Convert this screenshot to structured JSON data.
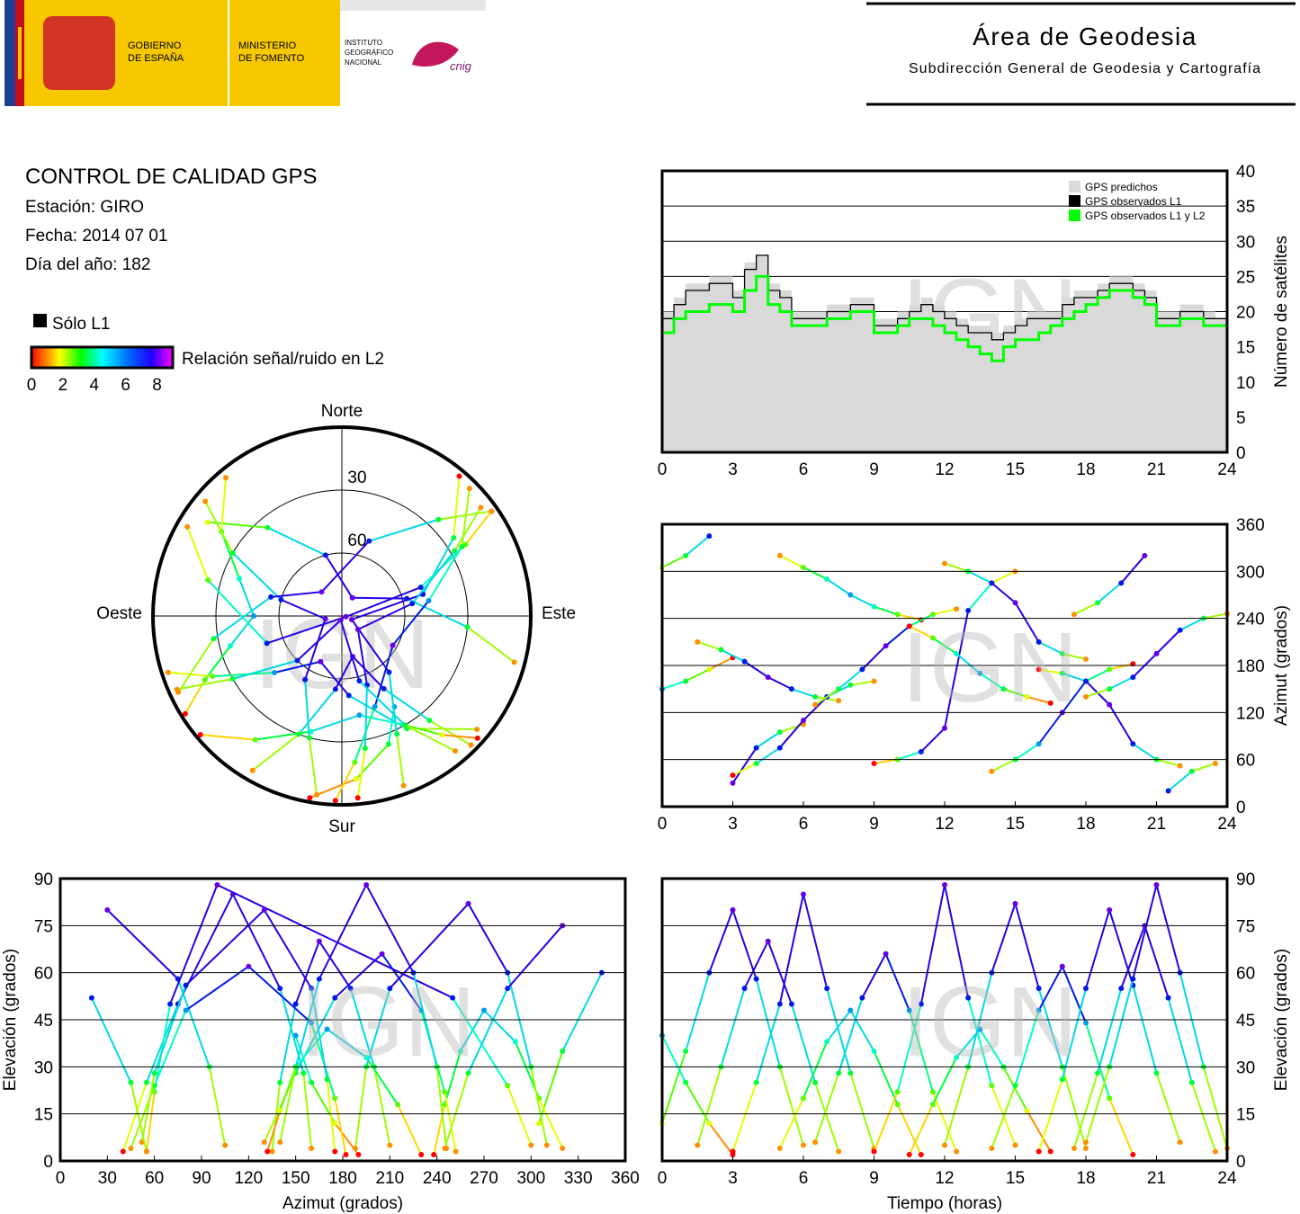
{
  "header": {
    "gobierno": [
      "GOBIERNO",
      "DE ESPAÑA"
    ],
    "ministerio": [
      "MINISTERIO",
      "DE FOMENTO"
    ],
    "ign": [
      "INSTITUTO",
      "GEOGRÁFICO",
      "NACIONAL"
    ],
    "cnig": "cnig",
    "title": "Área de Geodesia",
    "subtitle": "Subdirección General de Geodesia y Cartografía"
  },
  "report": {
    "title": "CONTROL DE CALIDAD GPS",
    "lines": [
      "Estación: GIRO",
      "Fecha: 2014 07 01",
      "Día del año: 182"
    ]
  },
  "legend": {
    "l1_only": "Sólo L1",
    "snr_label": "Relación señal/ruido en L2",
    "snr_lim": [
      0,
      9
    ],
    "snr_ticks": [
      0,
      2,
      4,
      6,
      8
    ]
  },
  "watermark": "IGN",
  "chart_data": [
    {
      "type": "step",
      "ylabel": "Número de satélites",
      "xlim": [
        0,
        24
      ],
      "xticks": [
        0,
        3,
        6,
        9,
        12,
        15,
        18,
        21,
        24
      ],
      "ylim": [
        0,
        40
      ],
      "yticks": [
        0,
        5,
        10,
        15,
        20,
        25,
        30,
        35,
        40
      ],
      "grid": true,
      "x": [
        0,
        0.5,
        1,
        1.5,
        2,
        2.5,
        3,
        3.5,
        4,
        4.5,
        5,
        5.5,
        6,
        6.5,
        7,
        7.5,
        8,
        8.5,
        9,
        9.5,
        10,
        10.5,
        11,
        11.5,
        12,
        12.5,
        13,
        13.5,
        14,
        14.5,
        15,
        15.5,
        16,
        16.5,
        17,
        17.5,
        18,
        18.5,
        19,
        19.5,
        20,
        20.5,
        21,
        21.5,
        22,
        22.5,
        23,
        23.5,
        24
      ],
      "series": [
        {
          "name": "GPS predichos",
          "color": "#d9d9d9",
          "values": [
            20,
            22,
            24,
            24,
            25,
            25,
            23,
            27,
            28,
            24,
            23,
            20,
            20,
            20,
            21,
            21,
            22,
            22,
            19,
            19,
            20,
            21,
            22,
            21,
            20,
            19,
            18,
            18,
            17,
            18,
            19,
            20,
            20,
            20,
            22,
            23,
            23,
            24,
            25,
            25,
            24,
            23,
            20,
            20,
            21,
            21,
            20,
            19,
            20
          ]
        },
        {
          "name": "GPS observados L1",
          "color": "#000000",
          "values": [
            19,
            21,
            23,
            23,
            24,
            24,
            22,
            26,
            28,
            23,
            22,
            19,
            19,
            19,
            20,
            20,
            21,
            21,
            18,
            18,
            19,
            20,
            21,
            20,
            19,
            18,
            17,
            17,
            16,
            17,
            18,
            19,
            19,
            19,
            21,
            22,
            22,
            23,
            24,
            24,
            23,
            22,
            19,
            19,
            20,
            20,
            19,
            19,
            20
          ]
        },
        {
          "name": "GPS observados L1 y L2",
          "color": "#00ff00",
          "values": [
            17,
            19,
            20,
            20,
            21,
            21,
            20,
            23,
            25,
            21,
            20,
            18,
            18,
            18,
            19,
            19,
            20,
            20,
            17,
            17,
            18,
            19,
            19,
            18,
            17,
            16,
            15,
            14,
            13,
            15,
            16,
            16,
            17,
            18,
            19,
            20,
            21,
            22,
            23,
            23,
            22,
            21,
            18,
            18,
            19,
            19,
            18,
            18,
            19
          ]
        }
      ]
    },
    {
      "type": "polar",
      "north": "Norte",
      "south": "Sur",
      "east": "Este",
      "west": "Oeste",
      "rlim": [
        90,
        0
      ],
      "rticks": [
        30,
        60
      ]
    },
    {
      "type": "azimuth-time",
      "ylabel": "Azimut (grados)",
      "xlim": [
        0,
        24
      ],
      "xticks": [
        0,
        3,
        6,
        9,
        12,
        15,
        18,
        21,
        24
      ],
      "ylim": [
        0,
        360
      ],
      "yticks": [
        0,
        60,
        120,
        180,
        240,
        300,
        360
      ],
      "grid": true
    },
    {
      "type": "elevation-azimuth",
      "xlabel": "Azimut (grados)",
      "ylabel": "Elevación (grados)",
      "xlim": [
        0,
        360
      ],
      "xticks": [
        0,
        30,
        60,
        90,
        120,
        150,
        180,
        210,
        240,
        270,
        300,
        330,
        360
      ],
      "ylim": [
        0,
        90
      ],
      "yticks": [
        0,
        15,
        30,
        45,
        60,
        75,
        90
      ],
      "grid": true
    },
    {
      "type": "elevation-time",
      "xlabel": "Tiempo (horas)",
      "ylabel": "Elevación (grados)",
      "xlim": [
        0,
        24
      ],
      "xticks": [
        0,
        3,
        6,
        9,
        12,
        15,
        18,
        21,
        24
      ],
      "ylim": [
        0,
        90
      ],
      "yticks": [
        0,
        15,
        30,
        45,
        60,
        75,
        90
      ],
      "grid": true
    }
  ],
  "passes": [
    {
      "time": [
        0,
        1,
        2,
        3,
        4,
        5,
        6
      ],
      "azimuth": [
        305,
        320,
        345,
        30,
        75,
        95,
        105
      ],
      "elevation": [
        12,
        35,
        60,
        80,
        58,
        30,
        5
      ],
      "snr": [
        2,
        4,
        7,
        8,
        7,
        4,
        1
      ]
    },
    {
      "time": [
        0,
        1,
        2,
        3
      ],
      "azimuth": [
        150,
        160,
        175,
        190
      ],
      "elevation": [
        40,
        25,
        12,
        2
      ],
      "snr": [
        6,
        4,
        2,
        0
      ]
    },
    {
      "time": [
        1.5,
        2.5,
        3.5,
        4.5,
        5.5,
        6.5,
        7.5
      ],
      "azimuth": [
        210,
        200,
        185,
        165,
        150,
        140,
        135
      ],
      "elevation": [
        5,
        30,
        55,
        70,
        50,
        25,
        3
      ],
      "snr": [
        1,
        4,
        7,
        8,
        7,
        4,
        1
      ]
    },
    {
      "time": [
        3,
        4,
        5,
        6,
        7,
        8,
        9
      ],
      "azimuth": [
        40,
        55,
        75,
        110,
        140,
        155,
        160
      ],
      "elevation": [
        3,
        25,
        50,
        85,
        55,
        28,
        4
      ],
      "snr": [
        0,
        4,
        7,
        8,
        7,
        4,
        1
      ]
    },
    {
      "time": [
        5,
        6,
        7,
        8,
        9,
        10,
        11
      ],
      "azimuth": [
        320,
        305,
        290,
        270,
        255,
        245,
        238
      ],
      "elevation": [
        4,
        20,
        38,
        48,
        35,
        18,
        2
      ],
      "snr": [
        1,
        3,
        5,
        6,
        5,
        3,
        0
      ]
    },
    {
      "time": [
        6.5,
        7.5,
        8.5,
        9.5,
        10.5,
        11.5,
        12.5
      ],
      "azimuth": [
        130,
        150,
        175,
        205,
        230,
        245,
        252
      ],
      "elevation": [
        6,
        28,
        52,
        66,
        48,
        22,
        3
      ],
      "snr": [
        1,
        4,
        7,
        8,
        6,
        3,
        1
      ]
    },
    {
      "time": [
        9,
        10,
        11,
        12,
        13,
        14,
        15
      ],
      "azimuth": [
        55,
        60,
        70,
        100,
        250,
        285,
        300
      ],
      "elevation": [
        3,
        22,
        50,
        88,
        52,
        24,
        5
      ],
      "snr": [
        0,
        3,
        7,
        8,
        7,
        3,
        1
      ]
    },
    {
      "time": [
        10.5,
        11.5,
        12.5,
        13.5,
        14.5,
        15.5,
        16.5
      ],
      "azimuth": [
        230,
        215,
        195,
        170,
        150,
        140,
        132
      ],
      "elevation": [
        2,
        18,
        33,
        42,
        30,
        16,
        3
      ],
      "snr": [
        0,
        3,
        5,
        6,
        4,
        2,
        0
      ]
    },
    {
      "time": [
        12,
        13,
        14,
        15,
        16,
        17,
        18
      ],
      "azimuth": [
        310,
        300,
        285,
        260,
        210,
        195,
        188
      ],
      "elevation": [
        5,
        30,
        60,
        82,
        55,
        30,
        4
      ],
      "snr": [
        1,
        4,
        7,
        8,
        7,
        4,
        1
      ]
    },
    {
      "time": [
        14,
        15,
        16,
        17,
        18,
        19,
        20
      ],
      "azimuth": [
        45,
        60,
        80,
        120,
        160,
        175,
        182
      ],
      "elevation": [
        4,
        24,
        48,
        62,
        44,
        20,
        2
      ],
      "snr": [
        1,
        4,
        6,
        8,
        6,
        3,
        0
      ]
    },
    {
      "time": [
        16,
        17,
        18,
        19,
        20,
        21,
        22
      ],
      "azimuth": [
        175,
        170,
        160,
        130,
        80,
        60,
        52
      ],
      "elevation": [
        3,
        26,
        55,
        80,
        56,
        28,
        6
      ],
      "snr": [
        0,
        4,
        7,
        8,
        7,
        4,
        1
      ]
    },
    {
      "time": [
        17.5,
        18.5,
        19.5,
        20.5,
        21.5,
        22.5,
        23.5
      ],
      "azimuth": [
        245,
        260,
        285,
        320,
        20,
        45,
        55
      ],
      "elevation": [
        4,
        28,
        55,
        75,
        52,
        25,
        3
      ],
      "snr": [
        1,
        4,
        7,
        8,
        7,
        4,
        1
      ]
    },
    {
      "time": [
        18,
        19,
        20,
        21,
        22,
        23,
        24
      ],
      "azimuth": [
        140,
        150,
        165,
        195,
        225,
        240,
        246
      ],
      "elevation": [
        6,
        30,
        58,
        88,
        60,
        30,
        4
      ],
      "snr": [
        1,
        4,
        7,
        8,
        7,
        4,
        1
      ]
    }
  ]
}
